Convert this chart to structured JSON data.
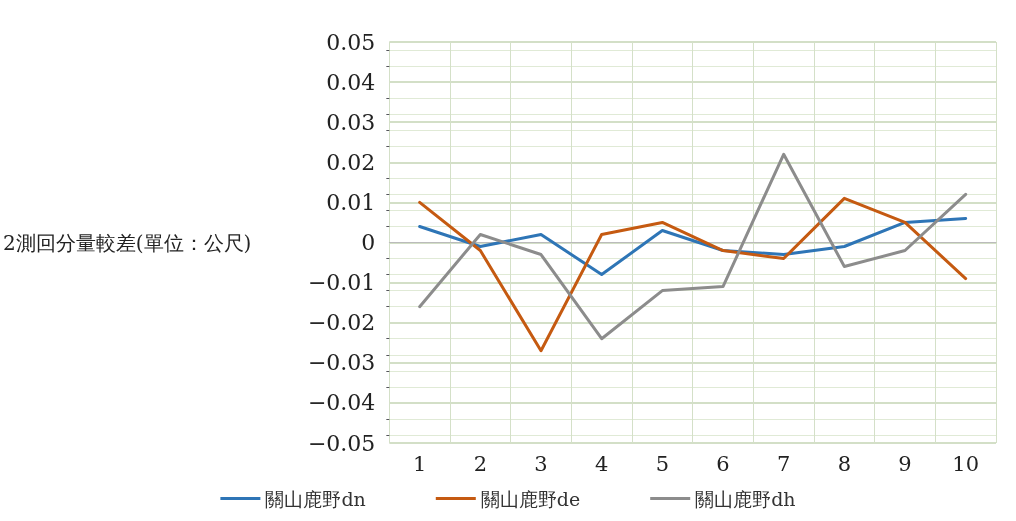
{
  "chart_data": {
    "type": "line",
    "ylabel": "2測回分量較差(單位：公尺)",
    "categories": [
      "1",
      "2",
      "3",
      "4",
      "5",
      "6",
      "7",
      "8",
      "9",
      "10"
    ],
    "series": [
      {
        "name": "關山鹿野dn",
        "color": "#2e75b6",
        "values": [
          0.004,
          -0.001,
          0.002,
          -0.008,
          0.003,
          -0.002,
          -0.003,
          -0.001,
          0.005,
          0.006
        ]
      },
      {
        "name": "關山鹿野de",
        "color": "#c55a11",
        "values": [
          0.01,
          -0.002,
          -0.027,
          0.002,
          0.005,
          -0.002,
          -0.004,
          0.011,
          0.005,
          -0.009
        ]
      },
      {
        "name": "關山鹿野dh",
        "color": "#8c8c8c",
        "values": [
          -0.016,
          0.002,
          -0.003,
          -0.024,
          -0.012,
          -0.011,
          0.022,
          -0.006,
          -0.002,
          0.012
        ]
      }
    ],
    "ylim": [
      -0.05,
      0.05
    ],
    "yticks": [
      {
        "value": -0.05,
        "label": "−0.05"
      },
      {
        "value": -0.04,
        "label": "−0.04"
      },
      {
        "value": -0.03,
        "label": "−0.03"
      },
      {
        "value": -0.02,
        "label": "−0.02"
      },
      {
        "value": -0.01,
        "label": "−0.01"
      },
      0,
      0.01,
      0.02,
      0.03,
      0.04,
      0.05
    ],
    "grid": true,
    "legend": "bottom",
    "marker": "none",
    "line_style": "solid"
  }
}
